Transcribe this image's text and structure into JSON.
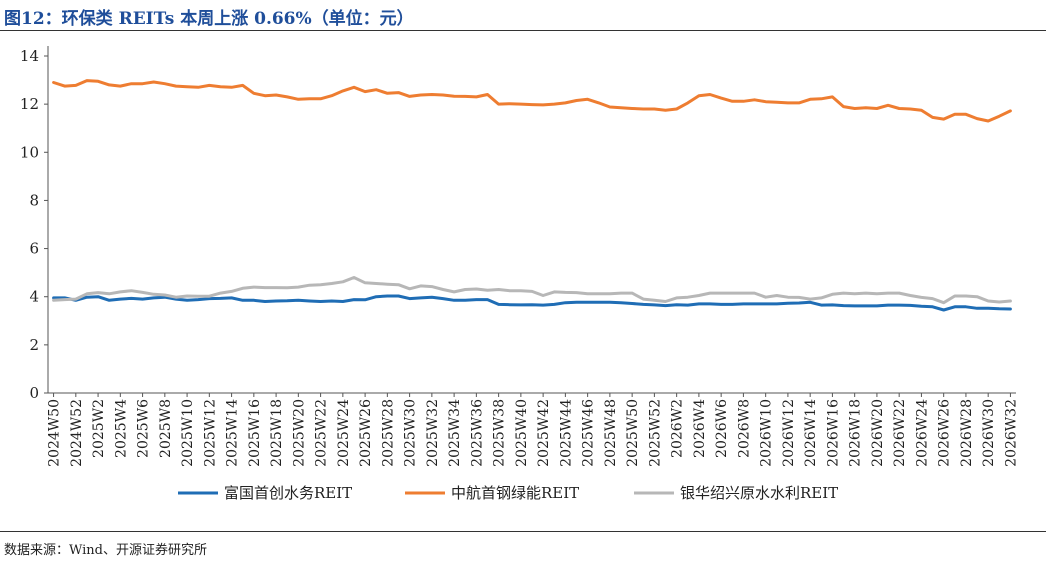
{
  "title": "图12：环保类 REITs 本周上涨 0.66%（单位：元）",
  "source": "数据来源：Wind、开源证券研究所",
  "chart_data": {
    "type": "line",
    "ylim": [
      0,
      14
    ],
    "yticks": [
      0,
      2,
      4,
      6,
      8,
      10,
      12,
      14
    ],
    "grid": false,
    "legend_position": "bottom",
    "x": [
      "2024W50",
      "2024W51",
      "2024W52",
      "2025W1",
      "2025W2",
      "2025W3",
      "2025W4",
      "2025W5",
      "2025W6",
      "2025W7",
      "2025W8",
      "2025W9",
      "2025W10",
      "2025W11",
      "2025W12",
      "2025W13",
      "2025W14",
      "2025W15",
      "2025W16",
      "2025W17",
      "2025W18",
      "2025W19",
      "2025W20",
      "2025W21",
      "2025W22",
      "2025W23",
      "2025W24",
      "2025W25",
      "2025W26",
      "2025W27",
      "2025W28",
      "2025W29",
      "2025W30",
      "2025W31",
      "2025W32",
      "2025W33",
      "2025W34",
      "2025W35",
      "2025W36",
      "2025W37",
      "2025W38",
      "2025W39",
      "2025W40",
      "2025W41",
      "2025W42",
      "2025W43",
      "2025W44",
      "2025W45",
      "2025W46",
      "2025W47",
      "2025W48",
      "2025W49",
      "2025W50",
      "2025W51",
      "2025W52",
      "2026W1",
      "2026W2",
      "2026W3",
      "2026W4",
      "2026W5",
      "2026W6",
      "2026W7",
      "2026W8",
      "2026W9",
      "2026W10",
      "2026W11",
      "2026W12",
      "2026W13",
      "2026W14",
      "2026W15",
      "2026W16",
      "2026W17",
      "2026W18",
      "2026W19",
      "2026W20",
      "2026W21",
      "2026W22",
      "2026W23",
      "2026W24",
      "2026W25",
      "2026W26",
      "2026W27",
      "2026W28",
      "2026W29",
      "2026W30",
      "2026W31",
      "2026W32"
    ],
    "tick_labels": [
      "2024W50",
      "2024W52",
      "2025W2",
      "2025W4",
      "2025W6",
      "2025W8",
      "2025W10",
      "2025W12",
      "2025W14",
      "2025W16",
      "2025W18",
      "2025W20",
      "2025W22",
      "2025W24",
      "2025W26",
      "2025W28",
      "2025W30",
      "2025W32",
      "2025W34",
      "2025W36",
      "2025W38",
      "2025W40",
      "2025W42",
      "2025W44",
      "2025W46",
      "2025W48",
      "2025W50",
      "2025W52",
      "2026W2",
      "2026W4",
      "2026W6",
      "2026W8",
      "2026W10",
      "2026W12",
      "2026W14",
      "2026W16",
      "2026W18",
      "2026W20",
      "2026W22",
      "2026W24",
      "2026W26",
      "2026W28",
      "2026W30",
      "2026W32"
    ],
    "series": [
      {
        "name": "富国首创水务REIT",
        "color": "#1f6db5",
        "values": [
          3.95,
          3.95,
          3.85,
          3.98,
          4.0,
          3.85,
          3.9,
          3.93,
          3.9,
          3.95,
          3.98,
          3.9,
          3.85,
          3.88,
          3.92,
          3.93,
          3.95,
          3.85,
          3.85,
          3.8,
          3.82,
          3.83,
          3.85,
          3.82,
          3.8,
          3.82,
          3.8,
          3.88,
          3.87,
          4.0,
          4.03,
          4.03,
          3.92,
          3.95,
          3.98,
          3.92,
          3.85,
          3.85,
          3.88,
          3.88,
          3.68,
          3.67,
          3.66,
          3.67,
          3.65,
          3.68,
          3.75,
          3.77,
          3.77,
          3.77,
          3.77,
          3.75,
          3.72,
          3.68,
          3.66,
          3.63,
          3.67,
          3.65,
          3.7,
          3.7,
          3.68,
          3.68,
          3.7,
          3.7,
          3.7,
          3.7,
          3.73,
          3.74,
          3.77,
          3.65,
          3.66,
          3.63,
          3.62,
          3.62,
          3.62,
          3.65,
          3.65,
          3.64,
          3.6,
          3.58,
          3.45,
          3.58,
          3.58,
          3.52,
          3.52,
          3.5,
          3.49
        ]
      },
      {
        "name": "中航首钢绿能REIT",
        "color": "#ee7d31",
        "values": [
          12.9,
          12.75,
          12.78,
          12.98,
          12.95,
          12.8,
          12.75,
          12.85,
          12.85,
          12.92,
          12.85,
          12.75,
          12.72,
          12.7,
          12.78,
          12.72,
          12.7,
          12.78,
          12.45,
          12.35,
          12.38,
          12.3,
          12.2,
          12.22,
          12.22,
          12.35,
          12.55,
          12.7,
          12.52,
          12.6,
          12.45,
          12.48,
          12.32,
          12.38,
          12.4,
          12.38,
          12.33,
          12.32,
          12.3,
          12.4,
          12.0,
          12.02,
          12.0,
          11.98,
          11.97,
          12.0,
          12.05,
          12.15,
          12.2,
          12.05,
          11.88,
          11.85,
          11.82,
          11.8,
          11.8,
          11.75,
          11.8,
          12.05,
          12.35,
          12.4,
          12.25,
          12.12,
          12.12,
          12.18,
          12.1,
          12.08,
          12.05,
          12.05,
          12.2,
          12.22,
          12.3,
          11.9,
          11.82,
          11.85,
          11.82,
          11.95,
          11.82,
          11.8,
          11.75,
          11.45,
          11.38,
          11.58,
          11.58,
          11.4,
          11.3,
          11.5,
          11.72
        ]
      },
      {
        "name": "银华绍兴原水水利REIT",
        "color": "#b7b7b7",
        "values": [
          3.85,
          3.88,
          3.9,
          4.12,
          4.17,
          4.12,
          4.2,
          4.25,
          4.18,
          4.1,
          4.07,
          3.98,
          4.03,
          4.02,
          4.02,
          4.15,
          4.22,
          4.35,
          4.4,
          4.38,
          4.38,
          4.37,
          4.4,
          4.48,
          4.5,
          4.55,
          4.62,
          4.8,
          4.58,
          4.55,
          4.52,
          4.5,
          4.33,
          4.45,
          4.42,
          4.3,
          4.2,
          4.3,
          4.32,
          4.27,
          4.3,
          4.25,
          4.25,
          4.22,
          4.05,
          4.2,
          4.18,
          4.17,
          4.12,
          4.12,
          4.12,
          4.15,
          4.15,
          3.9,
          3.85,
          3.8,
          3.95,
          3.98,
          4.05,
          4.15,
          4.15,
          4.15,
          4.15,
          4.15,
          3.98,
          4.05,
          3.98,
          3.97,
          3.9,
          3.95,
          4.1,
          4.15,
          4.12,
          4.15,
          4.12,
          4.15,
          4.15,
          4.05,
          3.97,
          3.92,
          3.75,
          4.03,
          4.03,
          4.0,
          3.82,
          3.78,
          3.82
        ]
      }
    ]
  }
}
